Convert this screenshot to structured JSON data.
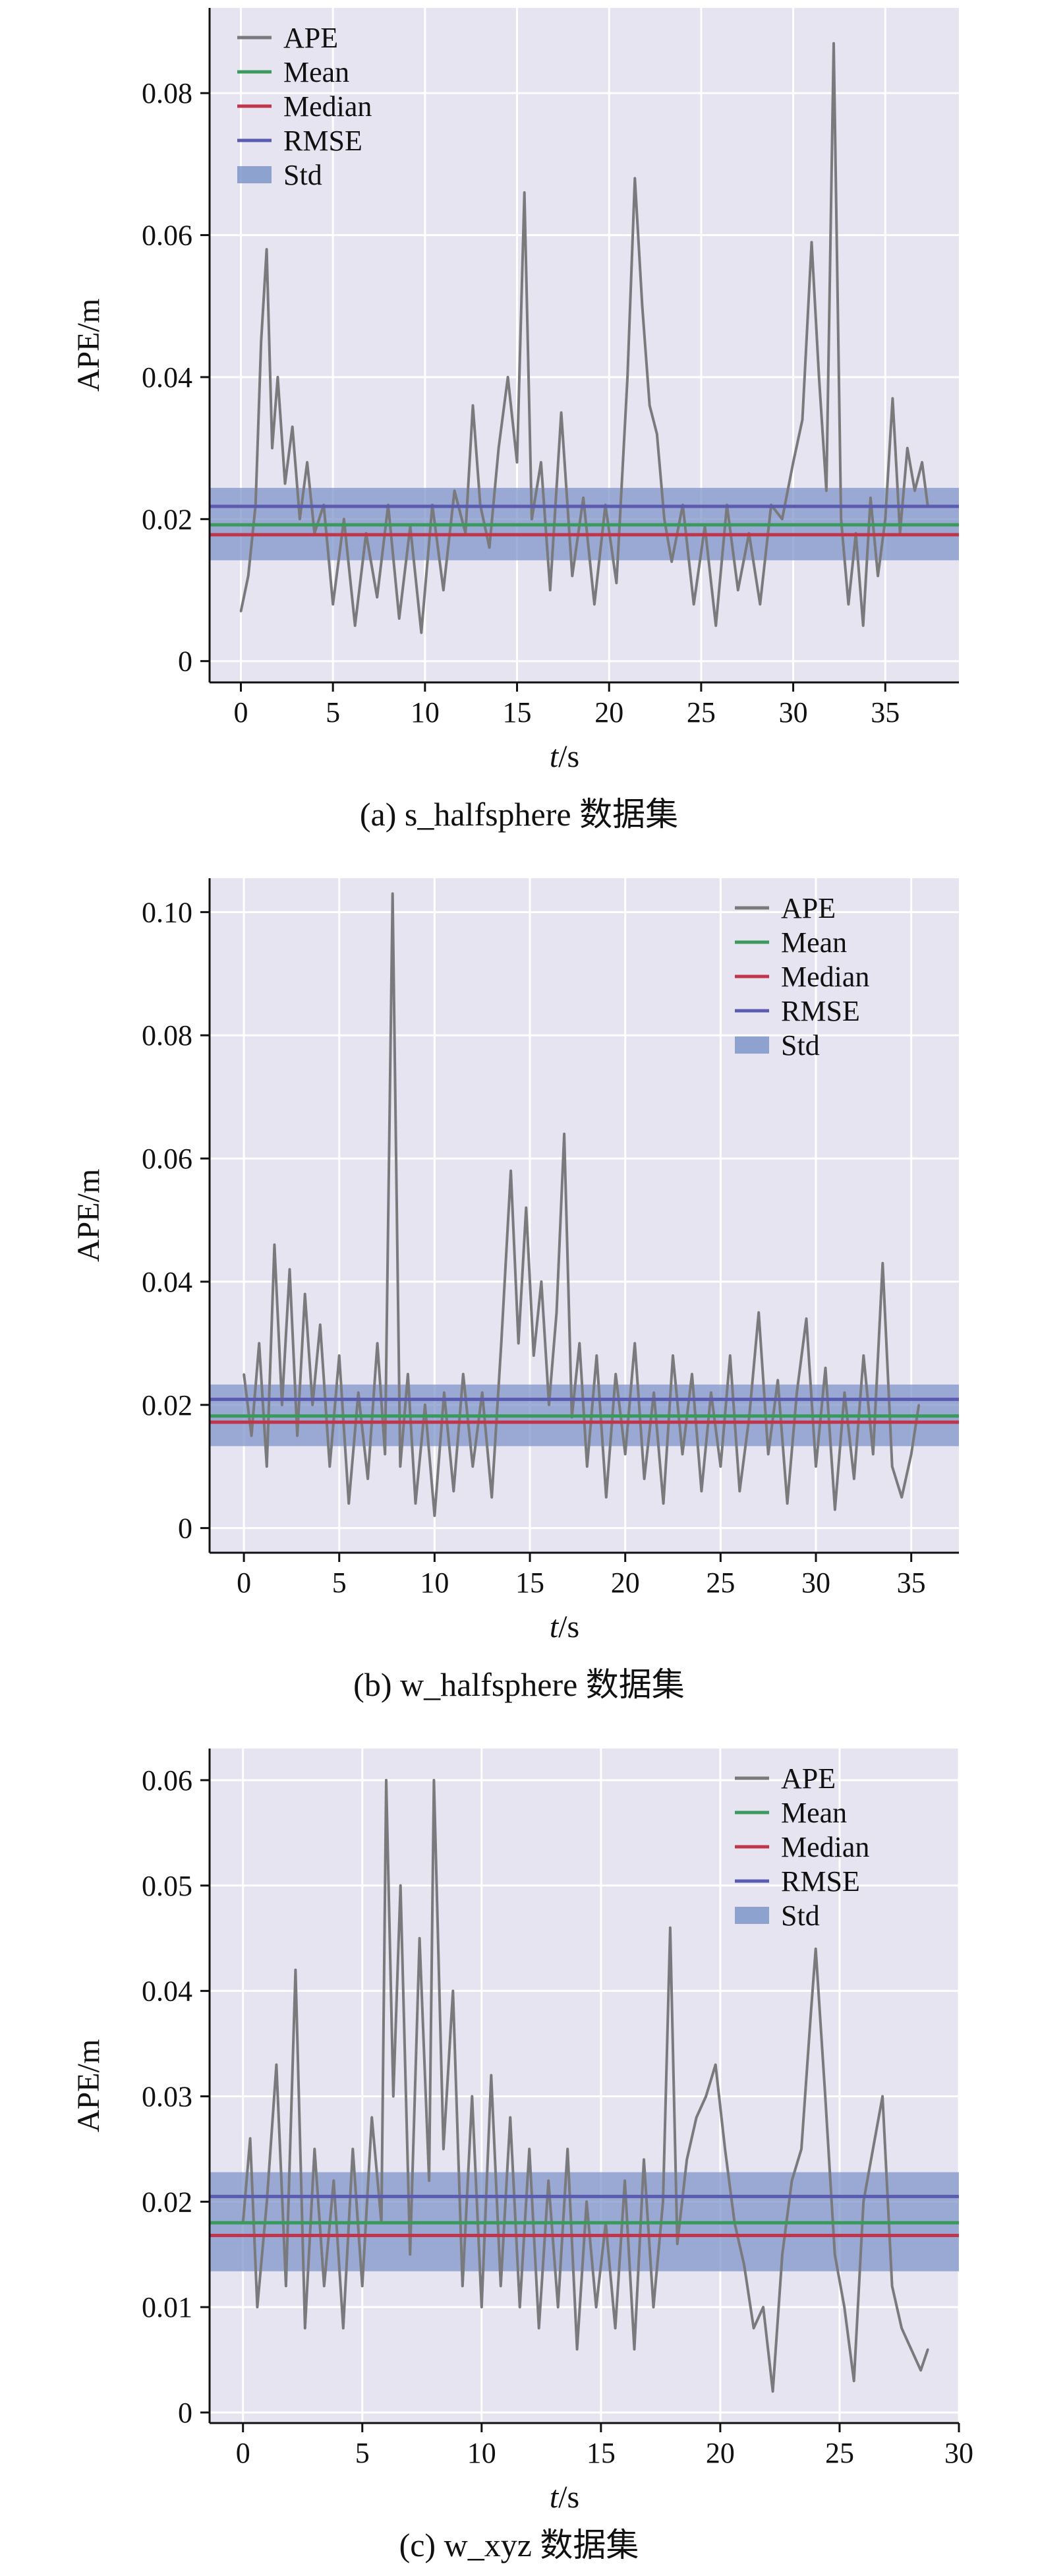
{
  "colors": {
    "background": "#e5e4f0",
    "grid": "#ffffff",
    "ape": "#7a7a7d",
    "mean": "#3a9a5b",
    "median": "#c0354a",
    "rmse": "#5b5bb0",
    "std": "#7f96c9"
  },
  "chart_data": [
    {
      "type": "line",
      "caption": "(a) s_halfsphere 数据集",
      "xlabel_italic": "t",
      "xlabel_unit": "/s",
      "ylabel": "APE/m",
      "xlim": [
        -1.7,
        39
      ],
      "ylim": [
        -0.003,
        0.092
      ],
      "xticks": [
        0,
        5,
        10,
        15,
        20,
        25,
        30,
        35
      ],
      "yticks": [
        0,
        0.02,
        0.04,
        0.06,
        0.08
      ],
      "ytick_labels": [
        "0",
        "0.02",
        "0.04",
        "0.06",
        "0.08"
      ],
      "legend_position": "top-left",
      "legend": [
        "APE",
        "Mean",
        "Median",
        "RMSE",
        "Std"
      ],
      "stats": {
        "mean": 0.0192,
        "median": 0.0178,
        "rmse": 0.0218,
        "std_low": 0.0142,
        "std_high": 0.0244
      },
      "series": [
        {
          "name": "APE",
          "x": [
            0,
            0.4,
            0.8,
            1.1,
            1.4,
            1.7,
            2.0,
            2.4,
            2.8,
            3.2,
            3.6,
            4.0,
            4.5,
            5.0,
            5.6,
            6.2,
            6.8,
            7.4,
            8.0,
            8.6,
            9.2,
            9.8,
            10.4,
            11.0,
            11.6,
            12.2,
            12.6,
            13.0,
            13.5,
            14.0,
            14.5,
            15.0,
            15.4,
            15.8,
            16.3,
            16.8,
            17.4,
            18.0,
            18.6,
            19.2,
            19.8,
            20.4,
            21.0,
            21.4,
            21.8,
            22.2,
            22.6,
            23.0,
            23.4,
            24.0,
            24.6,
            25.2,
            25.8,
            26.4,
            27.0,
            27.6,
            28.2,
            28.8,
            29.4,
            30.0,
            30.5,
            31.0,
            31.4,
            31.8,
            32.2,
            32.6,
            33.0,
            33.4,
            33.8,
            34.2,
            34.6,
            35.0,
            35.4,
            35.8,
            36.2,
            36.6,
            37.0,
            37.3
          ],
          "y": [
            0.007,
            0.012,
            0.022,
            0.045,
            0.058,
            0.03,
            0.04,
            0.025,
            0.033,
            0.02,
            0.028,
            0.018,
            0.022,
            0.008,
            0.02,
            0.005,
            0.018,
            0.009,
            0.022,
            0.006,
            0.019,
            0.004,
            0.022,
            0.01,
            0.024,
            0.018,
            0.036,
            0.022,
            0.016,
            0.03,
            0.04,
            0.028,
            0.066,
            0.02,
            0.028,
            0.01,
            0.035,
            0.012,
            0.023,
            0.008,
            0.022,
            0.011,
            0.04,
            0.068,
            0.05,
            0.036,
            0.032,
            0.02,
            0.014,
            0.022,
            0.008,
            0.019,
            0.005,
            0.022,
            0.01,
            0.018,
            0.008,
            0.022,
            0.02,
            0.028,
            0.034,
            0.059,
            0.04,
            0.024,
            0.087,
            0.02,
            0.008,
            0.018,
            0.005,
            0.023,
            0.012,
            0.02,
            0.037,
            0.018,
            0.03,
            0.024,
            0.028,
            0.022
          ]
        }
      ]
    },
    {
      "type": "line",
      "caption": "(b) w_halfsphere 数据集",
      "xlabel_italic": "t",
      "xlabel_unit": "/s",
      "ylabel": "APE/m",
      "xlim": [
        -1.8,
        37.5
      ],
      "ylim": [
        -0.004,
        0.1055
      ],
      "xticks": [
        0,
        5,
        10,
        15,
        20,
        25,
        30,
        35
      ],
      "yticks": [
        0,
        0.02,
        0.04,
        0.06,
        0.08,
        0.1
      ],
      "ytick_labels": [
        "0",
        "0.02",
        "0.04",
        "0.06",
        "0.08",
        "0.10"
      ],
      "legend_position": "top-right",
      "legend": [
        "APE",
        "Mean",
        "Median",
        "RMSE",
        "Std"
      ],
      "stats": {
        "mean": 0.0182,
        "median": 0.0172,
        "rmse": 0.0209,
        "std_low": 0.0133,
        "std_high": 0.0233
      },
      "series": [
        {
          "name": "APE",
          "x": [
            0,
            0.4,
            0.8,
            1.2,
            1.6,
            2.0,
            2.4,
            2.8,
            3.2,
            3.6,
            4.0,
            4.5,
            5.0,
            5.5,
            6.0,
            6.5,
            7.0,
            7.4,
            7.8,
            8.2,
            8.6,
            9.0,
            9.5,
            10.0,
            10.5,
            11.0,
            11.5,
            12.0,
            12.5,
            13.0,
            13.5,
            14.0,
            14.4,
            14.8,
            15.2,
            15.6,
            16.0,
            16.4,
            16.8,
            17.2,
            17.6,
            18.0,
            18.5,
            19.0,
            19.5,
            20.0,
            20.5,
            21.0,
            21.5,
            22.0,
            22.5,
            23.0,
            23.5,
            24.0,
            24.5,
            25.0,
            25.5,
            26.0,
            26.5,
            27.0,
            27.5,
            28.0,
            28.5,
            29.0,
            29.5,
            30.0,
            30.5,
            31.0,
            31.5,
            32.0,
            32.5,
            33.0,
            33.5,
            34.0,
            34.5,
            35.0,
            35.4
          ],
          "y": [
            0.025,
            0.015,
            0.03,
            0.01,
            0.046,
            0.02,
            0.042,
            0.015,
            0.038,
            0.02,
            0.033,
            0.01,
            0.028,
            0.004,
            0.022,
            0.008,
            0.03,
            0.012,
            0.103,
            0.01,
            0.025,
            0.004,
            0.02,
            0.002,
            0.022,
            0.006,
            0.025,
            0.01,
            0.022,
            0.005,
            0.03,
            0.058,
            0.03,
            0.052,
            0.028,
            0.04,
            0.02,
            0.035,
            0.064,
            0.018,
            0.03,
            0.01,
            0.028,
            0.005,
            0.025,
            0.012,
            0.03,
            0.008,
            0.022,
            0.004,
            0.028,
            0.012,
            0.025,
            0.006,
            0.022,
            0.01,
            0.028,
            0.006,
            0.018,
            0.035,
            0.012,
            0.024,
            0.004,
            0.022,
            0.034,
            0.01,
            0.026,
            0.003,
            0.022,
            0.008,
            0.028,
            0.012,
            0.043,
            0.01,
            0.005,
            0.012,
            0.02
          ]
        }
      ]
    },
    {
      "type": "line",
      "caption": "(c) w_xyz 数据集",
      "xlabel_italic": "t",
      "xlabel_unit": "/s",
      "ylabel": "APE/m",
      "xlim": [
        -1.4,
        30
      ],
      "ylim": [
        -0.001,
        0.063
      ],
      "xticks": [
        0,
        5,
        10,
        15,
        20,
        25,
        30
      ],
      "yticks": [
        0,
        0.01,
        0.02,
        0.03,
        0.04,
        0.05,
        0.06
      ],
      "ytick_labels": [
        "0",
        "0.01",
        "0.02",
        "0.03",
        "0.04",
        "0.05",
        "0.06"
      ],
      "legend_position": "top-right",
      "legend": [
        "APE",
        "Mean",
        "Median",
        "RMSE",
        "Std"
      ],
      "stats": {
        "mean": 0.018,
        "median": 0.0168,
        "rmse": 0.0205,
        "std_low": 0.0134,
        "std_high": 0.0228
      },
      "series": [
        {
          "name": "APE",
          "x": [
            0,
            0.3,
            0.6,
            1.0,
            1.4,
            1.8,
            2.2,
            2.6,
            3.0,
            3.4,
            3.8,
            4.2,
            4.6,
            5.0,
            5.4,
            5.8,
            6.0,
            6.3,
            6.6,
            7.0,
            7.4,
            7.8,
            8.0,
            8.4,
            8.8,
            9.2,
            9.6,
            10.0,
            10.4,
            10.8,
            11.2,
            11.6,
            12.0,
            12.4,
            12.8,
            13.2,
            13.6,
            14.0,
            14.4,
            14.8,
            15.2,
            15.6,
            16.0,
            16.4,
            16.8,
            17.2,
            17.6,
            17.9,
            18.2,
            18.6,
            19.0,
            19.4,
            19.8,
            20.2,
            20.6,
            21.0,
            21.4,
            21.8,
            22.2,
            22.6,
            23.0,
            23.4,
            23.8,
            24.0,
            24.4,
            24.8,
            25.2,
            25.6,
            26.0,
            26.4,
            26.8,
            27.2,
            27.6,
            28.0,
            28.4,
            28.7
          ],
          "y": [
            0.018,
            0.026,
            0.01,
            0.02,
            0.033,
            0.012,
            0.042,
            0.008,
            0.025,
            0.012,
            0.022,
            0.008,
            0.025,
            0.012,
            0.028,
            0.018,
            0.06,
            0.03,
            0.05,
            0.015,
            0.045,
            0.022,
            0.06,
            0.025,
            0.04,
            0.012,
            0.03,
            0.01,
            0.032,
            0.012,
            0.028,
            0.01,
            0.025,
            0.008,
            0.022,
            0.01,
            0.025,
            0.006,
            0.02,
            0.01,
            0.018,
            0.008,
            0.022,
            0.006,
            0.024,
            0.01,
            0.02,
            0.046,
            0.016,
            0.024,
            0.028,
            0.03,
            0.033,
            0.025,
            0.018,
            0.014,
            0.008,
            0.01,
            0.002,
            0.015,
            0.022,
            0.025,
            0.038,
            0.044,
            0.03,
            0.015,
            0.01,
            0.003,
            0.02,
            0.025,
            0.03,
            0.012,
            0.008,
            0.006,
            0.004,
            0.006
          ]
        }
      ]
    }
  ]
}
